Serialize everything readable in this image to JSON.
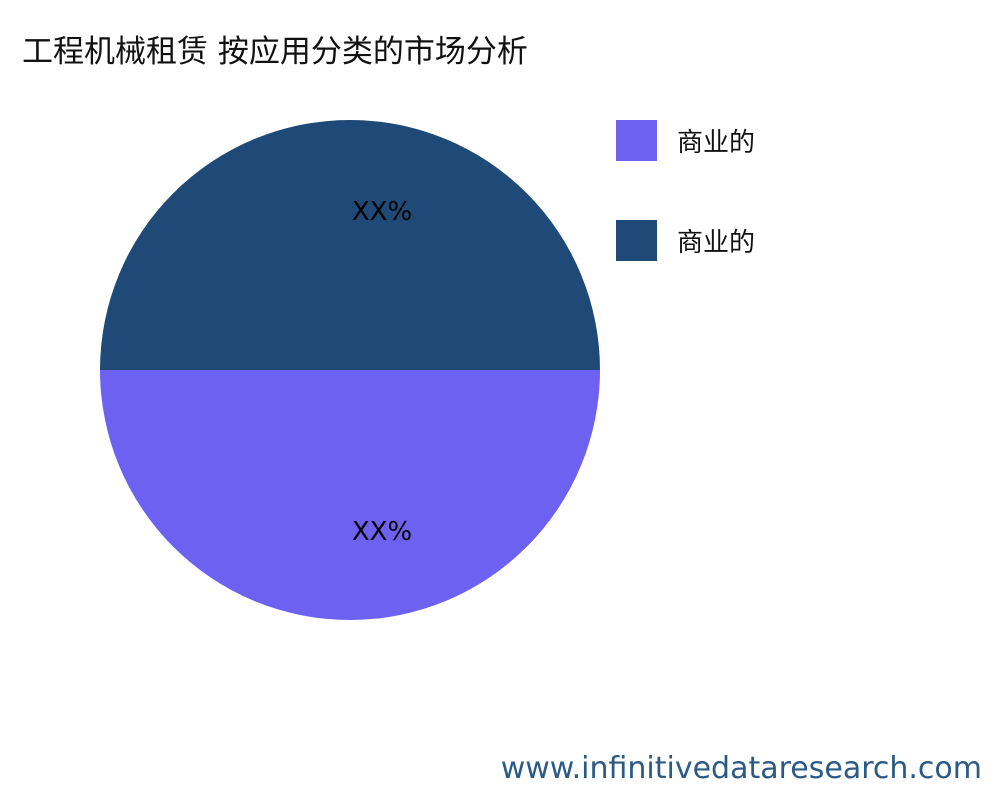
{
  "title": "工程机械租赁 按应用分类的市场分析",
  "watermark": "www.infinitivedataresearch.com",
  "chart_data": {
    "type": "pie",
    "title": "工程机械租赁 按应用分类的市场分析",
    "slices": [
      {
        "name": "商业的",
        "value": 50,
        "label": "XX%",
        "color": "#6c61f0"
      },
      {
        "name": "商业的",
        "value": 50,
        "label": "XX%",
        "color": "#1f4a78"
      }
    ],
    "legend_position": "right"
  }
}
